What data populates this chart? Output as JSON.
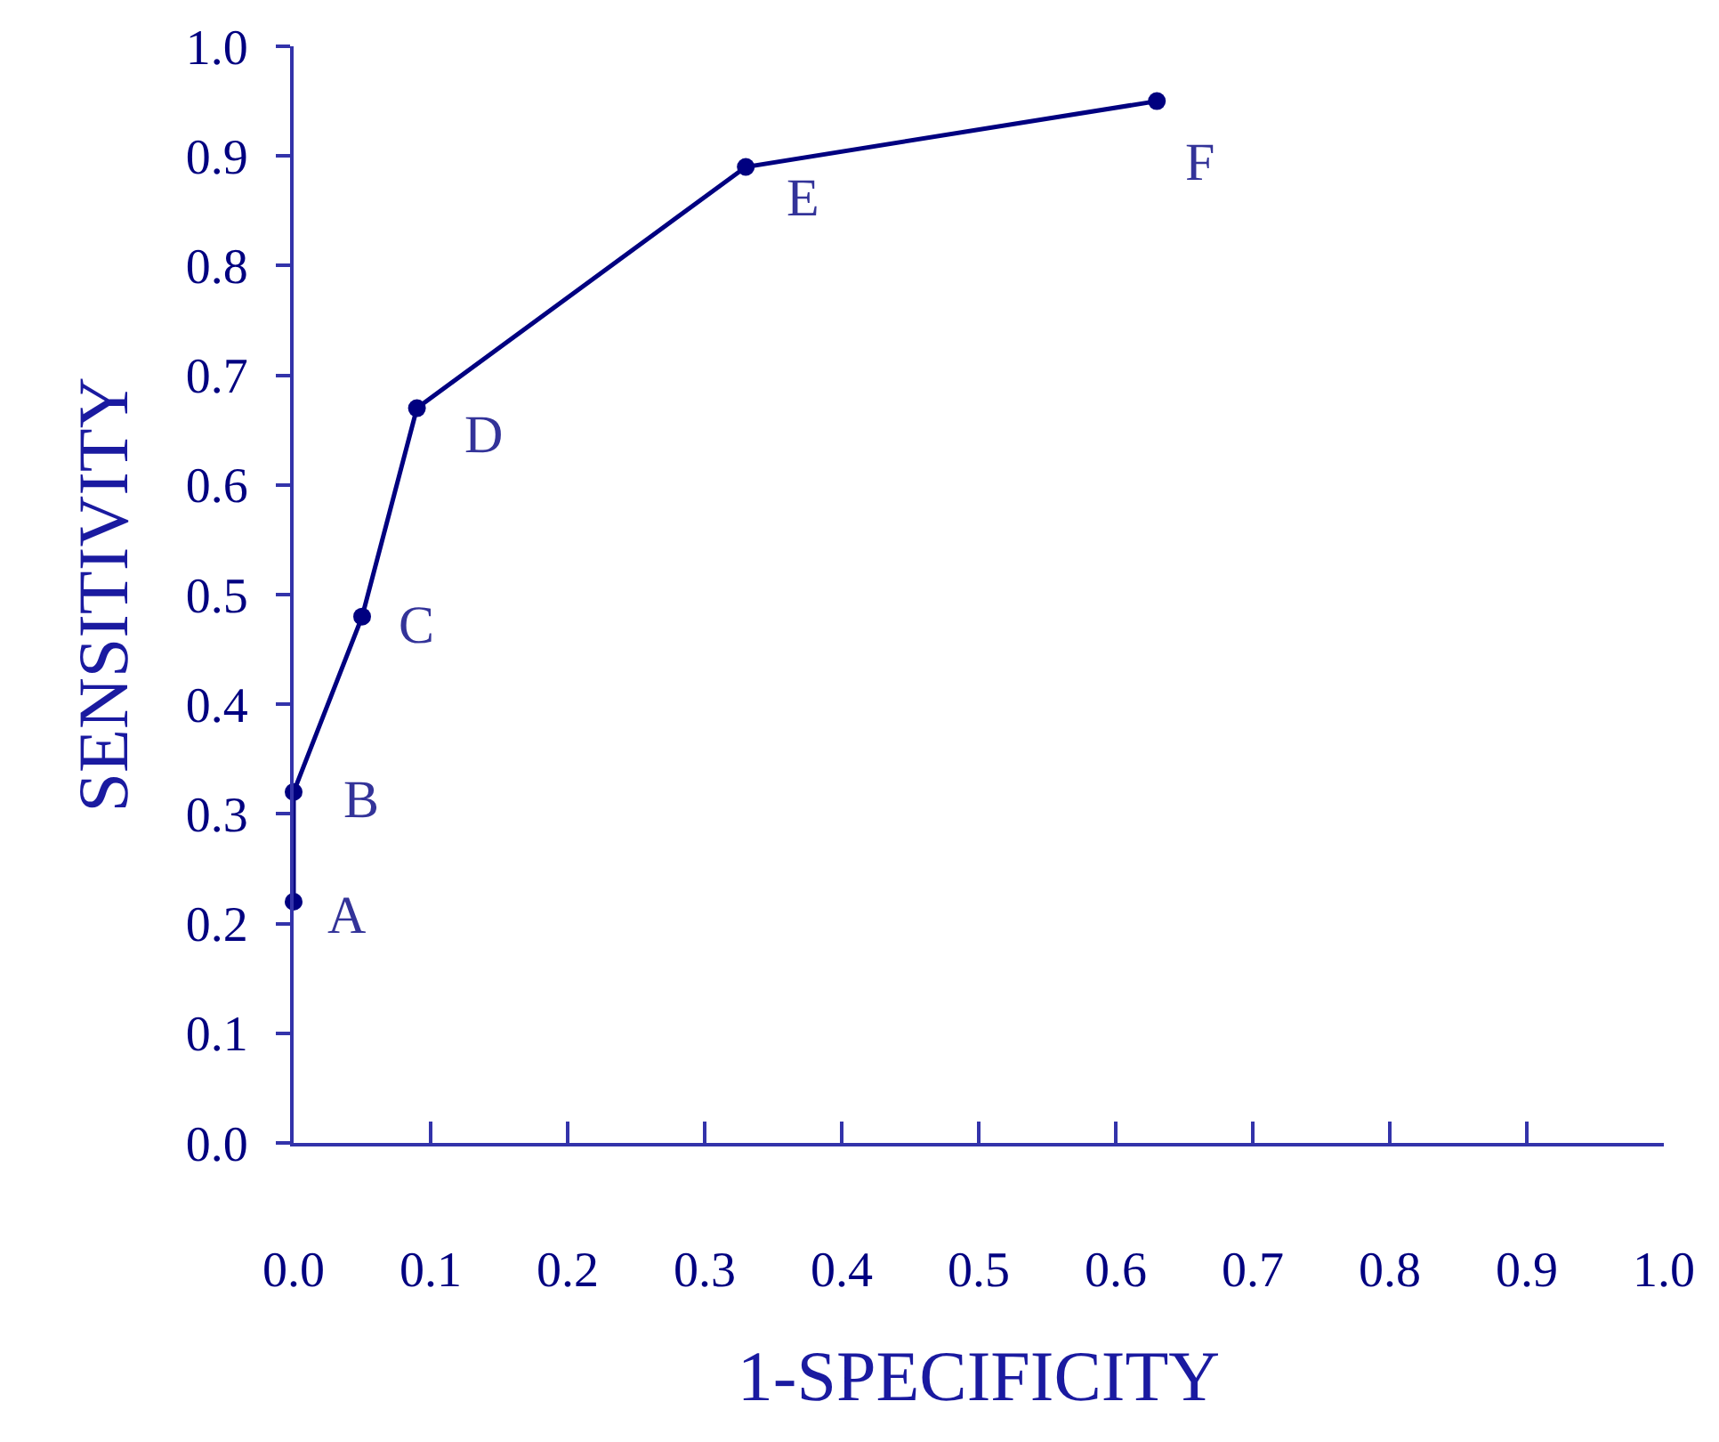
{
  "chart_data": {
    "type": "line",
    "xlabel": "1-SPECIFICITY",
    "ylabel": "SENSITIVITY",
    "x": [
      0.0,
      0.0,
      0.05,
      0.09,
      0.33,
      0.63
    ],
    "series": [
      {
        "color": "#000080",
        "values": [
          0.22,
          0.32,
          0.48,
          0.67,
          0.89,
          0.95
        ]
      }
    ],
    "xlim": [
      0,
      1
    ],
    "ylim": [
      0,
      1
    ],
    "xticks": [
      {
        "value": 0,
        "label": "0.0"
      },
      0.1,
      0.2,
      0.3,
      0.4,
      0.5,
      0.6,
      0.7,
      0.8,
      0.9,
      {
        "value": 1,
        "label": "1.0"
      }
    ],
    "yticks": [
      {
        "value": 0,
        "label": "0.0"
      },
      0.1,
      0.2,
      0.3,
      0.4,
      0.5,
      0.6,
      0.7,
      0.8,
      0.9,
      {
        "value": 1,
        "label": "1.0"
      }
    ],
    "annotations": [
      {
        "text": "A",
        "x": 0.0,
        "y": 0.22
      },
      {
        "text": "B",
        "x": 0.0,
        "y": 0.32
      },
      {
        "text": "C",
        "x": 0.05,
        "y": 0.48
      },
      {
        "text": "D",
        "x": 0.09,
        "y": 0.67
      },
      {
        "text": "E",
        "x": 0.33,
        "y": 0.89
      },
      {
        "text": "F",
        "x": 0.63,
        "y": 0.95
      }
    ],
    "marker": "circle",
    "line_style": "solid"
  }
}
